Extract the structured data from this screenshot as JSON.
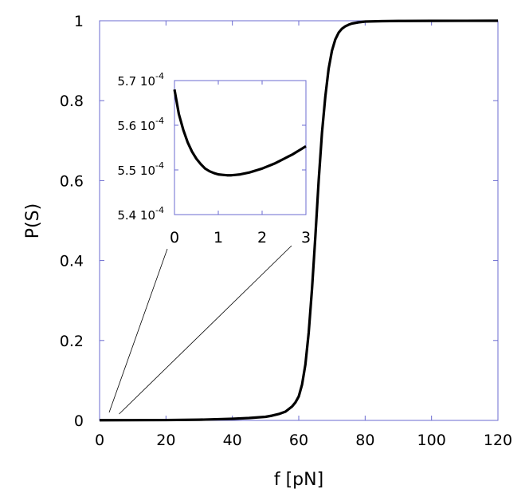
{
  "chart_data": [
    {
      "type": "line",
      "xlabel": "f [pN]",
      "ylabel": "P(S)",
      "xlim": [
        0,
        120
      ],
      "ylim": [
        0,
        1
      ],
      "x_ticks": [
        {
          "value": 0,
          "label": "0"
        },
        {
          "value": 20,
          "label": "20"
        },
        {
          "value": 40,
          "label": "40"
        },
        {
          "value": 60,
          "label": "60"
        },
        {
          "value": 80,
          "label": "80"
        },
        {
          "value": 100,
          "label": "100"
        },
        {
          "value": 120,
          "label": "120"
        }
      ],
      "y_ticks": [
        {
          "value": 0,
          "label": "0"
        },
        {
          "value": 0.2,
          "label": "0.2"
        },
        {
          "value": 0.4,
          "label": "0.4"
        },
        {
          "value": 0.6,
          "label": "0.6"
        },
        {
          "value": 0.8,
          "label": "0.8"
        },
        {
          "value": 1,
          "label": "1"
        }
      ],
      "grid": false,
      "series": [
        {
          "x": [
            0,
            10,
            20,
            30,
            40,
            45,
            50,
            52,
            54,
            56,
            58,
            59,
            60,
            61,
            62,
            63,
            64,
            65,
            66,
            67,
            68,
            69,
            70,
            71,
            72,
            73,
            74,
            75,
            76,
            78,
            80,
            85,
            90,
            100,
            110,
            120
          ],
          "y": [
            0.00055,
            0.0006,
            0.0009,
            0.0017,
            0.004,
            0.006,
            0.009,
            0.012,
            0.016,
            0.022,
            0.035,
            0.045,
            0.06,
            0.09,
            0.14,
            0.22,
            0.33,
            0.46,
            0.6,
            0.72,
            0.81,
            0.88,
            0.925,
            0.953,
            0.97,
            0.98,
            0.986,
            0.99,
            0.993,
            0.996,
            0.998,
            0.999,
            0.9995,
            0.9998,
            0.9999,
            1.0
          ]
        }
      ],
      "color": "#000000",
      "frame_color": "#6b6bd0"
    },
    {
      "type": "line",
      "role": "inset",
      "xlim": [
        0,
        3
      ],
      "ylim": [
        0.00054,
        0.00057
      ],
      "x_ticks": [
        {
          "value": 0,
          "label": "0"
        },
        {
          "value": 1,
          "label": "1"
        },
        {
          "value": 2,
          "label": "2"
        },
        {
          "value": 3,
          "label": "3"
        }
      ],
      "y_ticks": [
        {
          "value": 0.00054,
          "mantissa": "5.4",
          "base": "10",
          "exponent": "-4"
        },
        {
          "value": 0.00055,
          "mantissa": "5.5",
          "base": "10",
          "exponent": "-4"
        },
        {
          "value": 0.00056,
          "mantissa": "5.6",
          "base": "10",
          "exponent": "-4"
        },
        {
          "value": 0.00057,
          "mantissa": "5.7",
          "base": "10",
          "exponent": "-4"
        }
      ],
      "grid": false,
      "zoom_region_x": [
        0,
        3
      ],
      "series": [
        {
          "x": [
            0,
            0.1,
            0.2,
            0.3,
            0.4,
            0.5,
            0.6,
            0.7,
            0.8,
            0.9,
            1.0,
            1.1,
            1.2,
            1.3,
            1.4,
            1.5,
            1.6,
            1.7,
            1.8,
            1.9,
            2.0,
            2.1,
            2.2,
            2.3,
            2.4,
            2.5,
            2.6,
            2.7,
            2.8,
            2.9,
            3.0
          ],
          "y": [
            0.000568,
            0.0005625,
            0.000559,
            0.0005562,
            0.0005541,
            0.0005525,
            0.0005513,
            0.0005503,
            0.0005497,
            0.0005493,
            0.000549,
            0.0005489,
            0.0005488,
            0.0005488,
            0.0005489,
            0.000549,
            0.0005492,
            0.0005494,
            0.0005497,
            0.00055,
            0.0005503,
            0.0005507,
            0.0005511,
            0.0005515,
            0.000552,
            0.0005525,
            0.000553,
            0.0005535,
            0.0005541,
            0.0005547,
            0.0005553
          ]
        }
      ],
      "color": "#000000",
      "frame_color": "#6b6bd0"
    }
  ]
}
